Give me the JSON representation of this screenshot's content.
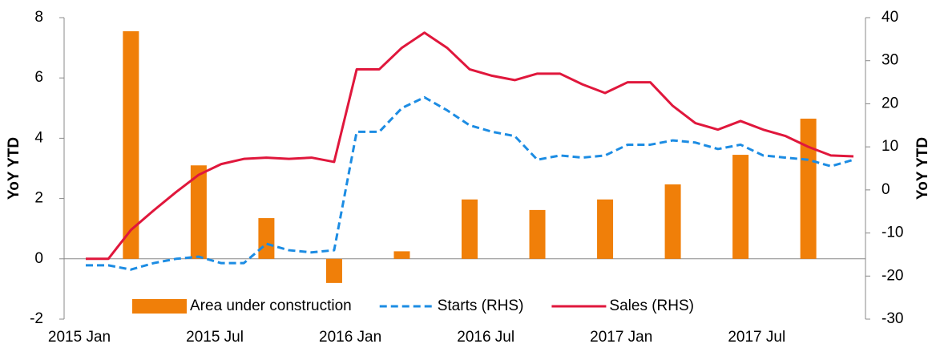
{
  "chart_data": {
    "type": "bar_line",
    "y_label": "YoY YTD",
    "y2_label": "YoY YTD",
    "categories": [
      "2015 Jan",
      null,
      null,
      null,
      null,
      null,
      "2015 Jul",
      null,
      null,
      null,
      null,
      null,
      "2016 Jan",
      null,
      null,
      null,
      null,
      null,
      "2016 Jul",
      null,
      null,
      null,
      null,
      null,
      "2017 Jan",
      null,
      null,
      null,
      null,
      null,
      "2017 Jul",
      null,
      null,
      null,
      null
    ],
    "ylim": [
      -2,
      8
    ],
    "yticks": [
      -2,
      0,
      2,
      4,
      6,
      8
    ],
    "y2lim": [
      -30,
      40
    ],
    "y2ticks": [
      -30,
      -20,
      -10,
      0,
      10,
      20,
      30,
      40
    ],
    "grid": false,
    "legend": "lower center",
    "series": [
      {
        "name": "Area under construction",
        "type": "bar",
        "color": "#f07f09",
        "values": [
          null,
          null,
          7.55,
          null,
          null,
          3.1,
          null,
          null,
          1.35,
          null,
          null,
          -0.8,
          null,
          null,
          0.25,
          null,
          null,
          1.97,
          null,
          null,
          1.62,
          null,
          null,
          1.97,
          null,
          null,
          2.47,
          null,
          null,
          3.45,
          null,
          null,
          4.65,
          null,
          null
        ]
      },
      {
        "name": "Starts (RHS)",
        "type": "line",
        "dashed": true,
        "axis": "y2",
        "color": "#1c8ce3",
        "values": [
          -17.5,
          -17.5,
          -18.5,
          -17,
          -16,
          -15.5,
          -17,
          -17,
          -12.5,
          -14,
          -14.5,
          -14,
          13.5,
          13.5,
          19,
          21.5,
          18.5,
          15,
          13.5,
          12.5,
          7,
          8,
          7.5,
          8,
          10.5,
          10.5,
          11.5,
          11,
          9.5,
          10.5,
          8,
          7.5,
          7,
          5.5,
          7
        ]
      },
      {
        "name": "Sales (RHS)",
        "type": "line",
        "dashed": false,
        "axis": "y2",
        "color": "#e0173c",
        "values": [
          -16,
          -16,
          -9.3,
          -4.8,
          -0.5,
          3.5,
          6,
          7.2,
          7.5,
          7.2,
          7.5,
          6.5,
          28,
          28,
          33,
          36.5,
          33,
          28,
          26.5,
          25.5,
          27,
          27,
          24.5,
          22.5,
          25,
          25,
          19.5,
          15.5,
          14,
          16,
          14,
          12.5,
          10,
          8,
          7.8
        ]
      }
    ]
  }
}
